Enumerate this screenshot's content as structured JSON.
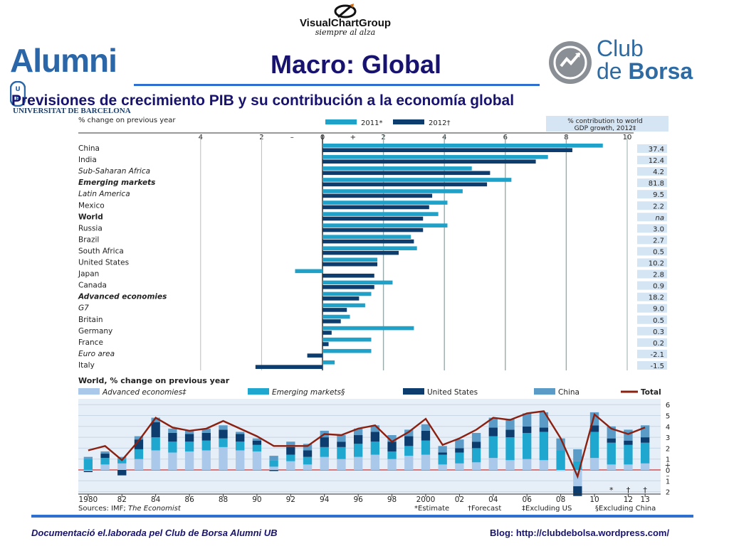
{
  "header": {
    "brand_name": "VisualChartGroup",
    "brand_tagline": "siempre al alza",
    "alumni_name": "Alumni",
    "alumni_sub": "UNIVERSITAT DE BARCELONA",
    "alumni_badge": "UB",
    "club_line1": "Club",
    "club_line2a": "de ",
    "club_line2b": "Borsa",
    "title": "Macro: Global"
  },
  "subtitle": "Previsiones de crecimiento PIB y su contribución a la economía global",
  "footer": {
    "left": "Documentació el.laborada pel Club de Borsa Alumni UB",
    "right": "Blog: http://clubdebolsa.wordpress.com/"
  },
  "colors": {
    "light_blue": "#1fa2c9",
    "dark_blue": "#0d3d6e",
    "adv_light": "#a9c8ea",
    "emerging": "#1fa7cf",
    "us": "#0d3d6e",
    "china": "#5a9cc7",
    "total_line": "#8b2010",
    "header_blue": "#17136e"
  },
  "chart_data": [
    {
      "type": "bar",
      "orientation": "horizontal",
      "ylabel_text": "% change on previous year",
      "legend": [
        "2011*",
        "2012†"
      ],
      "contribution_header": "% contribution to world GDP growth, 2012‡",
      "xlim": [
        -4,
        10
      ],
      "ticks": [
        {
          "v": -4,
          "label": "4"
        },
        {
          "v": -2,
          "label": "2"
        },
        {
          "v": -1,
          "label": "–"
        },
        {
          "v": 0,
          "label": "0"
        },
        {
          "v": 1,
          "label": "+"
        },
        {
          "v": 2,
          "label": "2"
        },
        {
          "v": 4,
          "label": "4"
        },
        {
          "v": 6,
          "label": "6"
        },
        {
          "v": 8,
          "label": "8"
        },
        {
          "v": 10,
          "label": "10"
        }
      ],
      "categories": [
        {
          "name": "China",
          "bold": false,
          "italic": false
        },
        {
          "name": "India",
          "bold": false,
          "italic": false
        },
        {
          "name": "Sub-Saharan Africa",
          "bold": false,
          "italic": true
        },
        {
          "name": "Emerging markets",
          "bold": true,
          "italic": true
        },
        {
          "name": "Latin America",
          "bold": false,
          "italic": true
        },
        {
          "name": "Mexico",
          "bold": false,
          "italic": false
        },
        {
          "name": "World",
          "bold": true,
          "italic": false
        },
        {
          "name": "Russia",
          "bold": false,
          "italic": false
        },
        {
          "name": "Brazil",
          "bold": false,
          "italic": false
        },
        {
          "name": "South Africa",
          "bold": false,
          "italic": false
        },
        {
          "name": "United States",
          "bold": false,
          "italic": false
        },
        {
          "name": "Japan",
          "bold": false,
          "italic": false
        },
        {
          "name": "Canada",
          "bold": false,
          "italic": false
        },
        {
          "name": "Advanced economies",
          "bold": true,
          "italic": true
        },
        {
          "name": "G7",
          "bold": false,
          "italic": true
        },
        {
          "name": "Britain",
          "bold": false,
          "italic": false
        },
        {
          "name": "Germany",
          "bold": false,
          "italic": false
        },
        {
          "name": "France",
          "bold": false,
          "italic": false
        },
        {
          "name": "Euro area",
          "bold": false,
          "italic": true
        },
        {
          "name": "Italy",
          "bold": false,
          "italic": false
        }
      ],
      "series": [
        {
          "name": "2011*",
          "values": [
            9.2,
            7.4,
            4.9,
            6.2,
            4.6,
            4.1,
            3.8,
            4.1,
            2.9,
            3.1,
            1.8,
            -0.9,
            2.3,
            1.6,
            1.4,
            0.9,
            3.0,
            1.6,
            1.6,
            0.4
          ]
        },
        {
          "name": "2012†",
          "values": [
            8.2,
            7.0,
            5.5,
            5.4,
            3.6,
            3.5,
            3.3,
            3.3,
            3.0,
            2.5,
            1.8,
            1.7,
            1.7,
            1.2,
            0.8,
            0.6,
            0.3,
            0.2,
            -0.5,
            -2.2
          ]
        }
      ],
      "contribution": [
        "37.4",
        "12.4",
        "4.2",
        "81.8",
        "9.5",
        "2.2",
        "na",
        "3.0",
        "2.7",
        "0.5",
        "10.2",
        "2.8",
        "0.9",
        "18.2",
        "9.0",
        "0.5",
        "0.3",
        "0.2",
        "-2.1",
        "-1.5"
      ]
    },
    {
      "type": "bar",
      "stacked": true,
      "title": "World, % change on previous year",
      "legend": [
        "Advanced economies‡",
        "Emerging markets§",
        "United States",
        "China",
        "Total"
      ],
      "ylim": [
        -2,
        6
      ],
      "yticks": [
        {
          "v": 6,
          "label": "6"
        },
        {
          "v": 5,
          "label": "5"
        },
        {
          "v": 4,
          "label": "4"
        },
        {
          "v": 3,
          "label": "3"
        },
        {
          "v": 2,
          "label": "2"
        },
        {
          "v": 1,
          "label": "1"
        },
        {
          "v": 0.5,
          "label": "+"
        },
        {
          "v": 0,
          "label": "0"
        },
        {
          "v": -0.5,
          "label": "–"
        },
        {
          "v": -1,
          "label": "1"
        },
        {
          "v": -2,
          "label": "2"
        }
      ],
      "xticks": [
        {
          "i": 0,
          "label": "1980"
        },
        {
          "i": 2,
          "label": "82"
        },
        {
          "i": 4,
          "label": "84"
        },
        {
          "i": 6,
          "label": "86"
        },
        {
          "i": 8,
          "label": "88"
        },
        {
          "i": 10,
          "label": "90"
        },
        {
          "i": 12,
          "label": "92"
        },
        {
          "i": 14,
          "label": "94"
        },
        {
          "i": 16,
          "label": "96"
        },
        {
          "i": 18,
          "label": "98"
        },
        {
          "i": 20,
          "label": "2000"
        },
        {
          "i": 22,
          "label": "02"
        },
        {
          "i": 24,
          "label": "04"
        },
        {
          "i": 26,
          "label": "06"
        },
        {
          "i": 28,
          "label": "08"
        },
        {
          "i": 30,
          "label": "10"
        },
        {
          "i": 32,
          "label": "12"
        },
        {
          "i": 33,
          "label": "13"
        }
      ],
      "years": [
        1980,
        1981,
        1982,
        1983,
        1984,
        1985,
        1986,
        1987,
        1988,
        1989,
        1990,
        1991,
        1992,
        1993,
        1994,
        1995,
        1996,
        1997,
        1998,
        1999,
        2000,
        2001,
        2002,
        2003,
        2004,
        2005,
        2006,
        2007,
        2008,
        2009,
        2010,
        2011,
        2012,
        2013
      ],
      "markers": [
        {
          "i": 31,
          "label": "*"
        },
        {
          "i": 32,
          "label": "†"
        },
        {
          "i": 33,
          "label": "†"
        }
      ],
      "series": [
        {
          "name": "Advanced economies‡",
          "values": [
            -0.1,
            0.5,
            0.6,
            1.0,
            1.8,
            1.6,
            1.7,
            1.8,
            2.1,
            1.8,
            1.7,
            0.3,
            0.8,
            0.5,
            1.2,
            1.0,
            1.2,
            1.4,
            1.0,
            1.3,
            1.4,
            0.5,
            0.6,
            0.7,
            1.1,
            0.9,
            1.0,
            0.9,
            -0.1,
            -1.5,
            1.1,
            0.5,
            0.5,
            0.6
          ]
        },
        {
          "name": "Emerging markets§",
          "values": [
            1.0,
            0.6,
            0.4,
            0.9,
            1.2,
            1.0,
            0.9,
            0.9,
            0.8,
            0.8,
            0.6,
            0.6,
            0.6,
            0.7,
            0.9,
            1.1,
            1.2,
            1.2,
            0.7,
            0.9,
            1.3,
            0.9,
            1.0,
            1.3,
            2.0,
            2.1,
            2.4,
            2.6,
            1.8,
            0.8,
            2.4,
            2.0,
            1.8,
            1.9
          ]
        },
        {
          "name": "United States",
          "values": [
            -0.1,
            0.4,
            -0.5,
            0.9,
            1.4,
            0.8,
            0.7,
            0.7,
            0.8,
            0.7,
            0.4,
            -0.1,
            0.7,
            0.6,
            0.9,
            0.5,
            0.8,
            0.9,
            0.9,
            0.9,
            0.9,
            0.2,
            0.4,
            0.6,
            0.8,
            0.7,
            0.6,
            0.4,
            0.0,
            -0.9,
            0.6,
            0.4,
            0.4,
            0.5
          ]
        },
        {
          "name": "China",
          "values": [
            0.2,
            0.2,
            0.2,
            0.3,
            0.4,
            0.4,
            0.3,
            0.4,
            0.4,
            0.2,
            0.2,
            0.4,
            0.5,
            0.6,
            0.6,
            0.6,
            0.6,
            0.6,
            0.6,
            0.6,
            0.6,
            0.6,
            0.8,
            0.8,
            0.9,
            1.0,
            1.2,
            1.4,
            1.1,
            1.1,
            1.2,
            1.1,
            1.0,
            1.1
          ]
        },
        {
          "name": "Total",
          "values": [
            1.8,
            2.2,
            0.9,
            2.7,
            4.8,
            3.9,
            3.6,
            3.8,
            4.5,
            3.8,
            3.1,
            2.2,
            2.2,
            2.2,
            3.3,
            3.2,
            3.8,
            4.1,
            2.6,
            3.5,
            4.7,
            2.3,
            2.9,
            3.7,
            4.8,
            4.6,
            5.2,
            5.4,
            2.9,
            -0.6,
            5.1,
            3.8,
            3.3,
            3.9
          ]
        }
      ]
    }
  ],
  "chart_footer": {
    "source_label": "Sources: IMF; ",
    "source_italic": "The Economist",
    "notes": [
      "*Estimate",
      "†Forecast",
      "‡Excluding US",
      "§Excluding China"
    ]
  }
}
